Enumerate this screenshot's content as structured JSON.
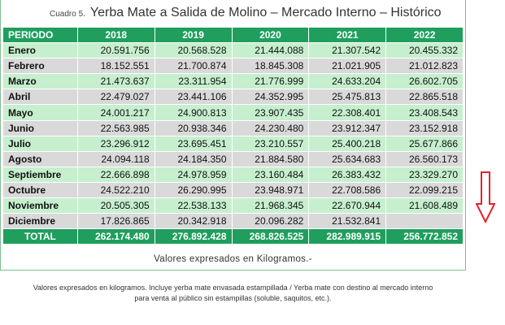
{
  "title": {
    "prefix": "Cuadro 5.",
    "text": "Yerba Mate a Salida de Molino  – Mercado Interno – Histórico"
  },
  "table": {
    "headers": [
      "PERIODO",
      "2018",
      "2019",
      "2020",
      "2021",
      "2022"
    ],
    "rows": [
      {
        "month": "Enero",
        "values": [
          "20.591.756",
          "20.568.528",
          "21.444.088",
          "21.307.542",
          "20.455.332"
        ]
      },
      {
        "month": "Febrero",
        "values": [
          "18.152.551",
          "21.700.874",
          "18.845.308",
          "21.021.905",
          "21.012.823"
        ]
      },
      {
        "month": "Marzo",
        "values": [
          "21.473.637",
          "23.311.954",
          "21.776.999",
          "24.633.204",
          "26.602.705"
        ]
      },
      {
        "month": "Abril",
        "values": [
          "22.479.027",
          "23.441.106",
          "24.352.995",
          "25.475.813",
          "22.865.518"
        ]
      },
      {
        "month": "Mayo",
        "values": [
          "24.001.217",
          "24.900.813",
          "23.907.435",
          "22.308.401",
          "23.408.543"
        ]
      },
      {
        "month": "Junio",
        "values": [
          "22.563.985",
          "20.938.346",
          "24.230.480",
          "23.912.347",
          "23.152.918"
        ]
      },
      {
        "month": "Julio",
        "values": [
          "23.296.912",
          "23.695.451",
          "23.210.557",
          "25.400.218",
          "25.677.866"
        ]
      },
      {
        "month": "Agosto",
        "values": [
          "24.094.118",
          "24.184.350",
          "21.884.580",
          "25.634.683",
          "26.560.173"
        ]
      },
      {
        "month": "Septiembre",
        "values": [
          "22.666.898",
          "24.978.959",
          "23.160.484",
          "26.383.432",
          "23.329.270"
        ]
      },
      {
        "month": "Octubre",
        "values": [
          "24.522.210",
          "26.290.995",
          "23.948.971",
          "22.708.586",
          "22.099.215"
        ]
      },
      {
        "month": "Noviembre",
        "values": [
          "20.505.305",
          "22.538.133",
          "21.968.345",
          "22.670.944",
          "21.608.489"
        ]
      },
      {
        "month": "Diciembre",
        "values": [
          "17.826.865",
          "20.342.918",
          "20.096.282",
          "21.532.841",
          ""
        ]
      }
    ],
    "total": {
      "label": "TOTAL",
      "values": [
        "262.174.480",
        "276.892.428",
        "268.826.525",
        "282.989.915",
        "256.772.852"
      ]
    }
  },
  "table_note": "Valores expresados en Kilogramos.-",
  "footnote": {
    "line1": "Valores expresados en kilogramos. Incluye yerba mate envasada estampillada / Yerba mate con destino al mercado interno",
    "line2": "para venta al público sin estampillas (soluble, saquitos, etc.)."
  },
  "colors": {
    "header_green": "#1f9e5e",
    "row_light_green": "#c6efce",
    "row_gray": "#d9d9d9",
    "arrow_red": "#e8202a"
  },
  "icons": {
    "arrow": "down-arrow-icon"
  }
}
